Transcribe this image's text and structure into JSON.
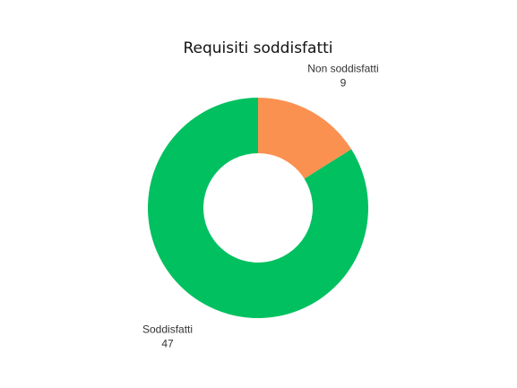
{
  "chart_data": {
    "type": "pie",
    "title": "Requisiti soddisfatti",
    "donut": true,
    "legend": "none",
    "slices": [
      {
        "label": "Non soddisfatti",
        "value": 9,
        "color": "#fb9150"
      },
      {
        "label": "Soddisfatti",
        "value": 47,
        "color": "#00c060"
      }
    ]
  }
}
